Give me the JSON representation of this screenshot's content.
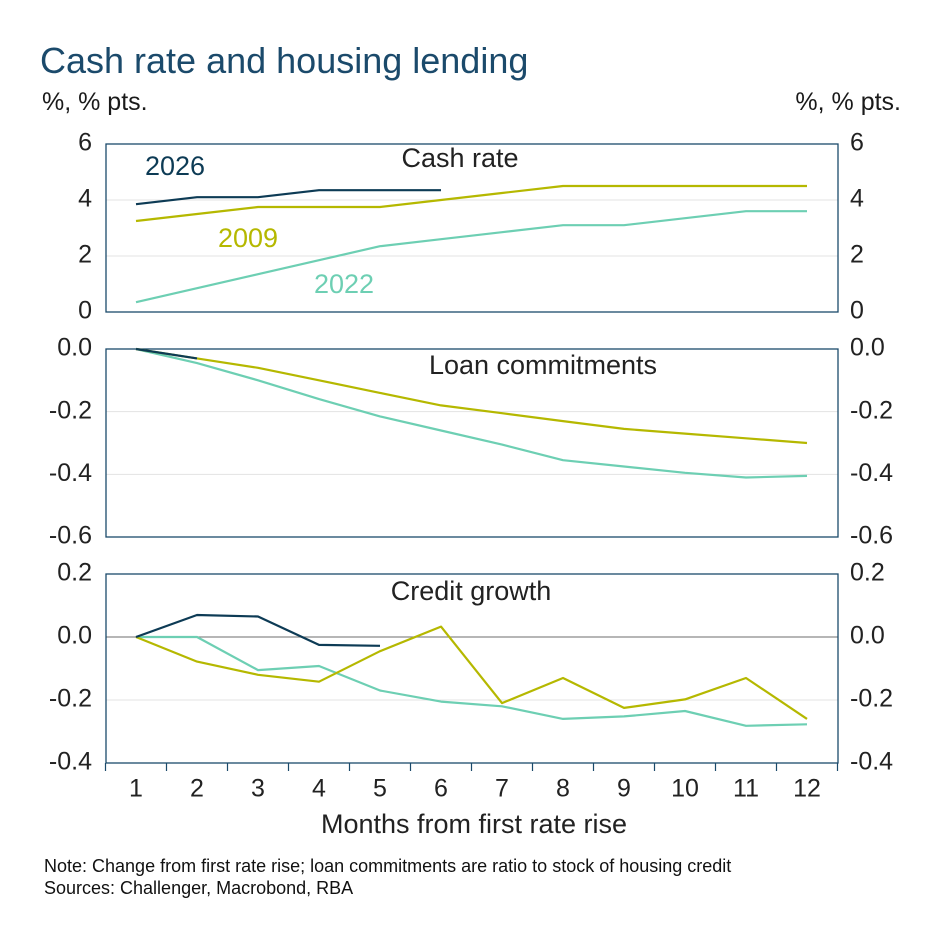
{
  "title": "Cash rate and housing lending",
  "units_left": "%, % pts.",
  "units_right": "%, % pts.",
  "xlabel": "Months from first rate rise",
  "notes": [
    "Note: Change from first rate rise; loan commitments are ratio to stock of housing credit",
    "Sources: Challenger, Macrobond, RBA"
  ],
  "colors": {
    "s2026": "#0d3b55",
    "s2009": "#b5b800",
    "s2022": "#6dcfb3"
  },
  "chart_data": [
    {
      "type": "line",
      "title": "Cash rate",
      "x": [
        1,
        2,
        3,
        4,
        5,
        6,
        7,
        8,
        9,
        10,
        11,
        12
      ],
      "xticks": [
        "1",
        "2",
        "3",
        "4",
        "5",
        "6",
        "7",
        "8",
        "9",
        "10",
        "11",
        "12"
      ],
      "ylim": [
        0,
        6
      ],
      "yticks": [
        "0",
        "2",
        "4",
        "6"
      ],
      "series": [
        {
          "name": "2026",
          "values": [
            3.85,
            4.1,
            4.1,
            4.35,
            4.35,
            4.35,
            null,
            null,
            null,
            null,
            null,
            null
          ]
        },
        {
          "name": "2009",
          "values": [
            3.25,
            3.5,
            3.75,
            3.75,
            3.75,
            4.0,
            4.25,
            4.5,
            4.5,
            4.5,
            4.5,
            4.5
          ]
        },
        {
          "name": "2022",
          "values": [
            0.35,
            0.85,
            1.35,
            1.85,
            2.35,
            2.6,
            2.85,
            3.1,
            3.1,
            3.35,
            3.6,
            3.6
          ]
        }
      ]
    },
    {
      "type": "line",
      "title": "Loan commitments",
      "x": [
        1,
        2,
        3,
        4,
        5,
        6,
        7,
        8,
        9,
        10,
        11,
        12
      ],
      "ylim": [
        -0.6,
        0.0
      ],
      "yticks": [
        "-0.6",
        "-0.4",
        "-0.2",
        "0.0"
      ],
      "series": [
        {
          "name": "2026",
          "values": [
            0.0,
            -0.03,
            null,
            null,
            null,
            null,
            null,
            null,
            null,
            null,
            null,
            null
          ]
        },
        {
          "name": "2009",
          "values": [
            0.0,
            -0.03,
            -0.06,
            -0.1,
            -0.14,
            -0.18,
            -0.205,
            -0.23,
            -0.255,
            -0.27,
            -0.285,
            -0.3
          ]
        },
        {
          "name": "2022",
          "values": [
            0.0,
            -0.045,
            -0.1,
            -0.16,
            -0.215,
            -0.26,
            -0.305,
            -0.355,
            -0.375,
            -0.395,
            -0.41,
            -0.405
          ]
        }
      ]
    },
    {
      "type": "line",
      "title": "Credit growth",
      "x": [
        1,
        2,
        3,
        4,
        5,
        6,
        7,
        8,
        9,
        10,
        11,
        12
      ],
      "ylim": [
        -0.4,
        0.2
      ],
      "yticks": [
        "-0.4",
        "-0.2",
        "0.0",
        "0.2"
      ],
      "series": [
        {
          "name": "2026",
          "values": [
            0.0,
            0.07,
            0.065,
            -0.025,
            -0.028,
            null,
            null,
            null,
            null,
            null,
            null,
            null
          ]
        },
        {
          "name": "2009",
          "values": [
            0.0,
            -0.078,
            -0.12,
            -0.142,
            -0.045,
            0.033,
            -0.21,
            -0.13,
            -0.225,
            -0.198,
            -0.13,
            -0.26
          ]
        },
        {
          "name": "2022",
          "values": [
            0.0,
            0.0,
            -0.105,
            -0.092,
            -0.17,
            -0.205,
            -0.22,
            -0.26,
            -0.252,
            -0.235,
            -0.282,
            -0.277
          ]
        }
      ]
    }
  ]
}
